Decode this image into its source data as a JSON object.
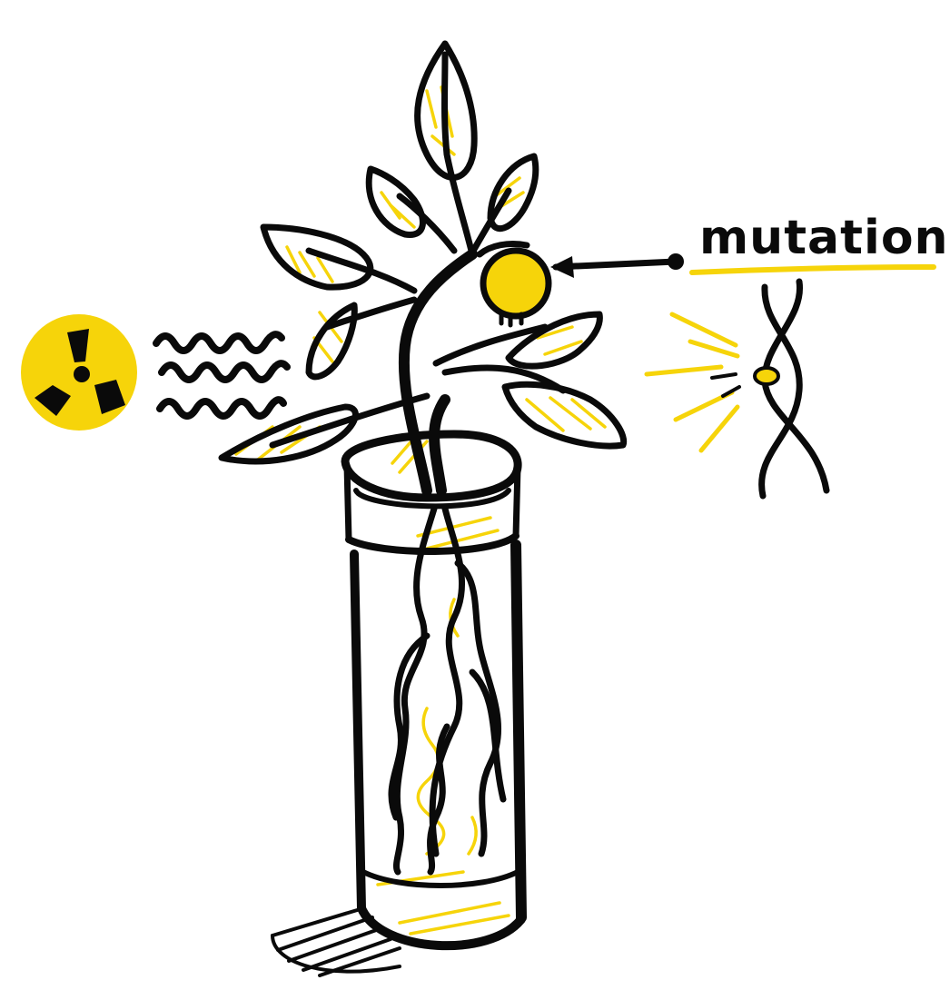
{
  "label": {
    "text": "mutation"
  },
  "colors": {
    "ink": "#0a0a0a",
    "accent": "#f6d40a",
    "background": "#ffffff"
  },
  "icons": [
    "radiation-icon",
    "radiation-waves",
    "plant",
    "test-tube",
    "dna-helix",
    "mutation-bud",
    "pointer-arrow"
  ]
}
